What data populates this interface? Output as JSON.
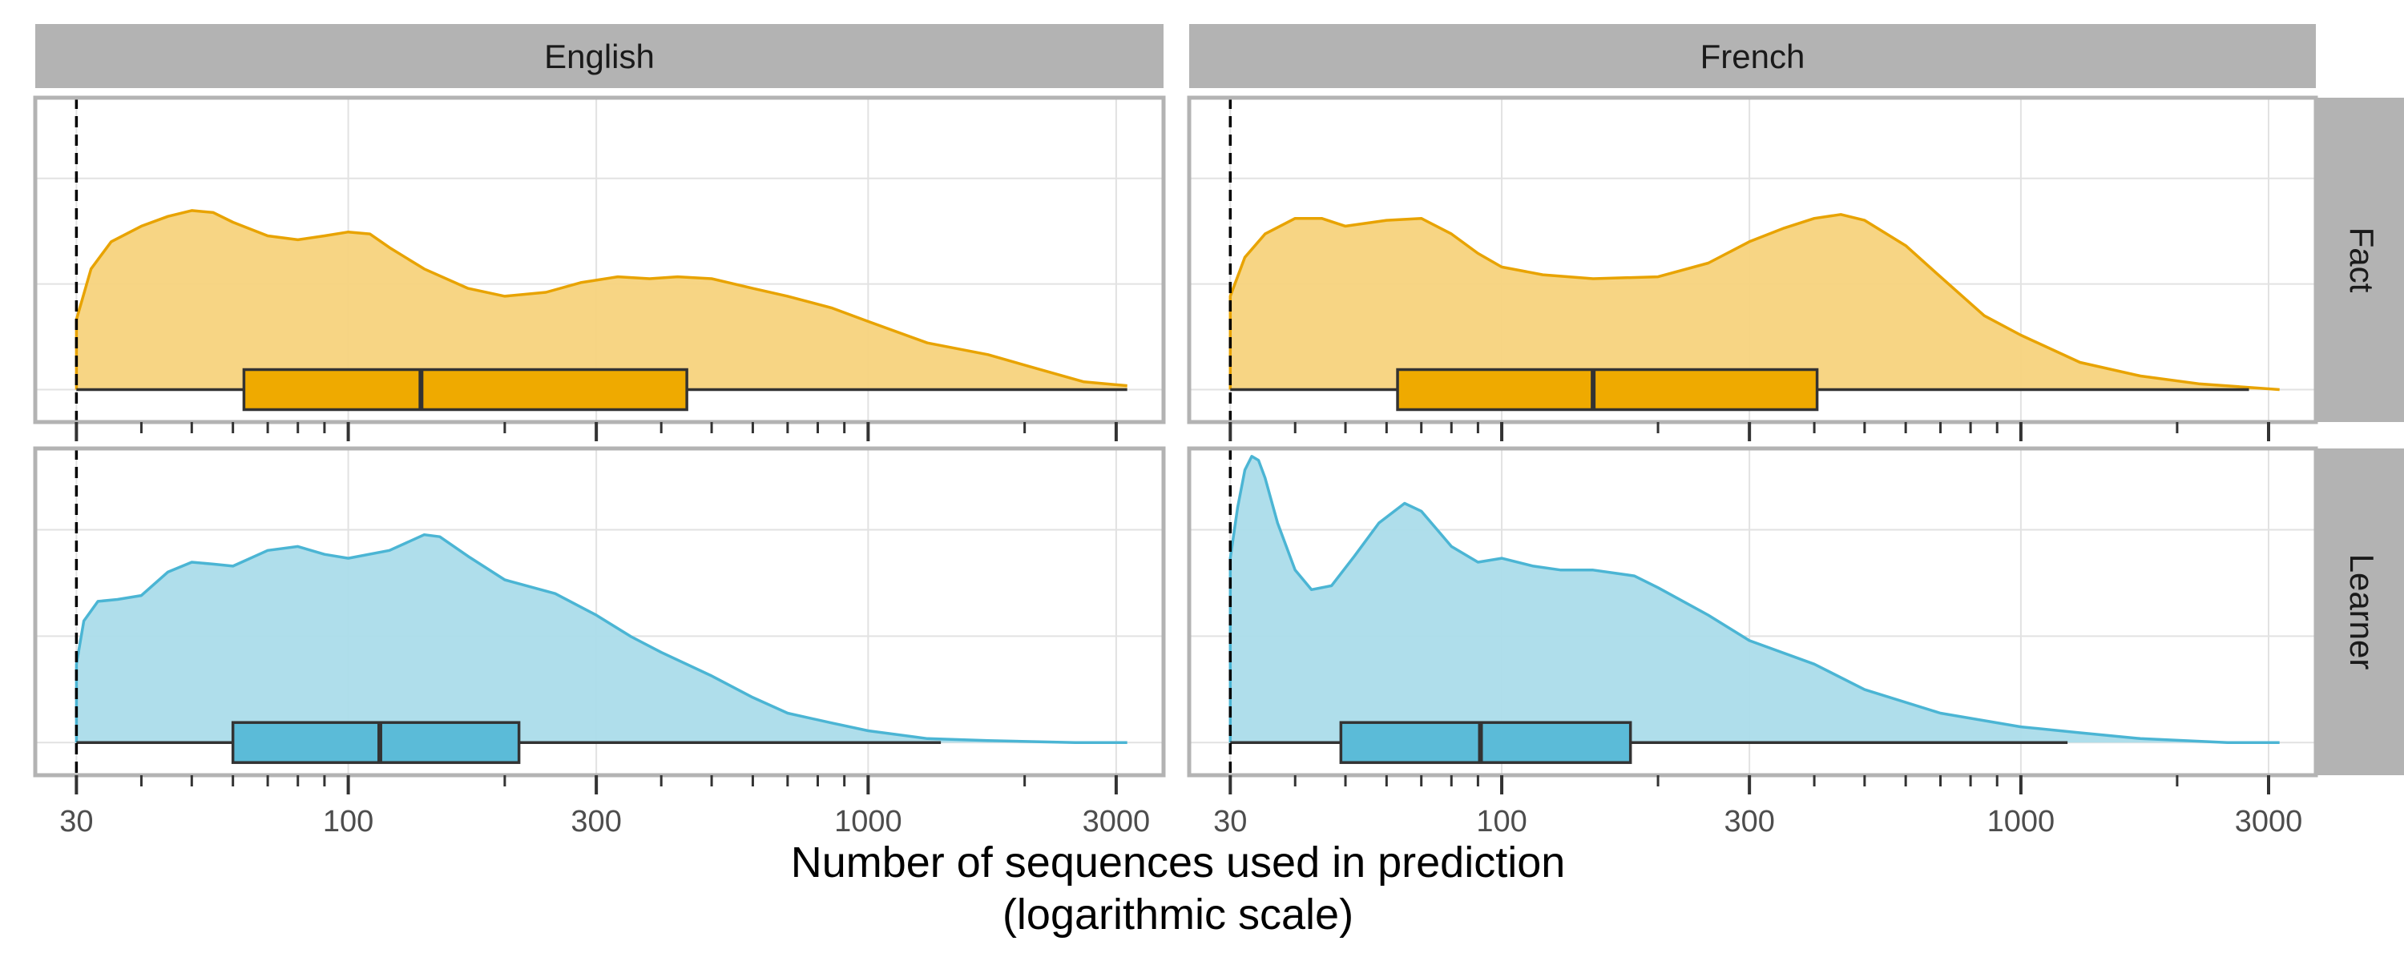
{
  "chart_data": {
    "type": "density-boxplot",
    "x_scale": "log10",
    "xlim": [
      25,
      3700
    ],
    "x_ticks": [
      {
        "value": 30,
        "label": "30"
      },
      {
        "value": 100,
        "label": "100"
      },
      {
        "value": 300,
        "label": "300"
      },
      {
        "value": 1000,
        "label": "1000"
      },
      {
        "value": 3000,
        "label": "3000"
      }
    ],
    "minor_ticks": [
      40,
      50,
      60,
      70,
      80,
      90,
      200,
      400,
      500,
      600,
      700,
      800,
      900,
      2000
    ],
    "xlabel_line1": "Number of sequences used in prediction",
    "xlabel_line2": "(logarithmic scale)",
    "reference_line": 30,
    "columns": [
      "English",
      "French"
    ],
    "rows": [
      "Fact",
      "Learner"
    ],
    "colors": {
      "Fact": {
        "fill": "#F7D37D",
        "line": "#E8A300",
        "box": "#EFAA00"
      },
      "Learner": {
        "fill": "#ABDCEA",
        "line": "#4BB5D4",
        "box": "#5BBBD8"
      },
      "strip": "#B3B3B3",
      "grid": "#E2E2E2",
      "border": "#B3B3B3",
      "dark": "#333333"
    },
    "panels": [
      {
        "language": "English",
        "type": "Fact",
        "density": [
          [
            30,
            0.36
          ],
          [
            32,
            0.62
          ],
          [
            35,
            0.76
          ],
          [
            40,
            0.84
          ],
          [
            45,
            0.89
          ],
          [
            50,
            0.92
          ],
          [
            55,
            0.91
          ],
          [
            60,
            0.86
          ],
          [
            70,
            0.79
          ],
          [
            80,
            0.77
          ],
          [
            90,
            0.79
          ],
          [
            100,
            0.81
          ],
          [
            110,
            0.8
          ],
          [
            120,
            0.73
          ],
          [
            140,
            0.62
          ],
          [
            170,
            0.52
          ],
          [
            200,
            0.48
          ],
          [
            240,
            0.5
          ],
          [
            280,
            0.55
          ],
          [
            330,
            0.58
          ],
          [
            380,
            0.57
          ],
          [
            430,
            0.58
          ],
          [
            500,
            0.57
          ],
          [
            600,
            0.52
          ],
          [
            700,
            0.48
          ],
          [
            850,
            0.42
          ],
          [
            1000,
            0.35
          ],
          [
            1300,
            0.24
          ],
          [
            1700,
            0.18
          ],
          [
            2100,
            0.11
          ],
          [
            2600,
            0.04
          ],
          [
            3150,
            0.02
          ]
        ],
        "box": {
          "q1": 63,
          "median": 138,
          "q3": 448,
          "lower": 30,
          "upper": 3150
        }
      },
      {
        "language": "French",
        "type": "Fact",
        "density": [
          [
            30,
            0.48
          ],
          [
            32,
            0.68
          ],
          [
            35,
            0.8
          ],
          [
            40,
            0.88
          ],
          [
            45,
            0.88
          ],
          [
            50,
            0.84
          ],
          [
            60,
            0.87
          ],
          [
            70,
            0.88
          ],
          [
            80,
            0.8
          ],
          [
            90,
            0.7
          ],
          [
            100,
            0.63
          ],
          [
            120,
            0.59
          ],
          [
            150,
            0.57
          ],
          [
            200,
            0.58
          ],
          [
            250,
            0.65
          ],
          [
            300,
            0.76
          ],
          [
            350,
            0.83
          ],
          [
            400,
            0.88
          ],
          [
            450,
            0.9
          ],
          [
            500,
            0.87
          ],
          [
            600,
            0.74
          ],
          [
            700,
            0.58
          ],
          [
            850,
            0.38
          ],
          [
            1000,
            0.28
          ],
          [
            1300,
            0.14
          ],
          [
            1700,
            0.07
          ],
          [
            2200,
            0.03
          ],
          [
            2800,
            0.01
          ],
          [
            3150,
            0.0
          ]
        ],
        "box": {
          "q1": 63,
          "median": 150,
          "q3": 405,
          "lower": 30,
          "upper": 2750
        }
      },
      {
        "language": "English",
        "type": "Learner",
        "density": [
          [
            30,
            0.4
          ],
          [
            31,
            0.62
          ],
          [
            33,
            0.72
          ],
          [
            36,
            0.73
          ],
          [
            40,
            0.75
          ],
          [
            45,
            0.87
          ],
          [
            50,
            0.92
          ],
          [
            55,
            0.91
          ],
          [
            60,
            0.9
          ],
          [
            70,
            0.98
          ],
          [
            80,
            1.0
          ],
          [
            90,
            0.96
          ],
          [
            100,
            0.94
          ],
          [
            120,
            0.98
          ],
          [
            140,
            1.06
          ],
          [
            150,
            1.05
          ],
          [
            170,
            0.95
          ],
          [
            200,
            0.83
          ],
          [
            250,
            0.76
          ],
          [
            300,
            0.65
          ],
          [
            350,
            0.54
          ],
          [
            400,
            0.46
          ],
          [
            500,
            0.34
          ],
          [
            600,
            0.23
          ],
          [
            700,
            0.15
          ],
          [
            850,
            0.1
          ],
          [
            1000,
            0.06
          ],
          [
            1300,
            0.02
          ],
          [
            1700,
            0.01
          ],
          [
            2500,
            0.0
          ],
          [
            3150,
            0.0
          ]
        ],
        "box": {
          "q1": 60,
          "median": 115,
          "q3": 213,
          "lower": 30,
          "upper": 1380
        }
      },
      {
        "language": "French",
        "type": "Learner",
        "density": [
          [
            30,
            0.94
          ],
          [
            31,
            1.2
          ],
          [
            32,
            1.39
          ],
          [
            33,
            1.46
          ],
          [
            34,
            1.44
          ],
          [
            35,
            1.35
          ],
          [
            37,
            1.12
          ],
          [
            40,
            0.88
          ],
          [
            43,
            0.78
          ],
          [
            47,
            0.8
          ],
          [
            52,
            0.95
          ],
          [
            58,
            1.12
          ],
          [
            65,
            1.22
          ],
          [
            70,
            1.18
          ],
          [
            80,
            1.0
          ],
          [
            90,
            0.92
          ],
          [
            100,
            0.94
          ],
          [
            115,
            0.9
          ],
          [
            130,
            0.88
          ],
          [
            150,
            0.88
          ],
          [
            180,
            0.85
          ],
          [
            200,
            0.79
          ],
          [
            250,
            0.65
          ],
          [
            300,
            0.52
          ],
          [
            400,
            0.4
          ],
          [
            500,
            0.27
          ],
          [
            700,
            0.15
          ],
          [
            1000,
            0.08
          ],
          [
            1300,
            0.05
          ],
          [
            1700,
            0.02
          ],
          [
            2500,
            0.0
          ],
          [
            3150,
            0.0
          ]
        ],
        "box": {
          "q1": 49,
          "median": 91,
          "q3": 177,
          "lower": 30,
          "upper": 1230
        }
      }
    ]
  }
}
